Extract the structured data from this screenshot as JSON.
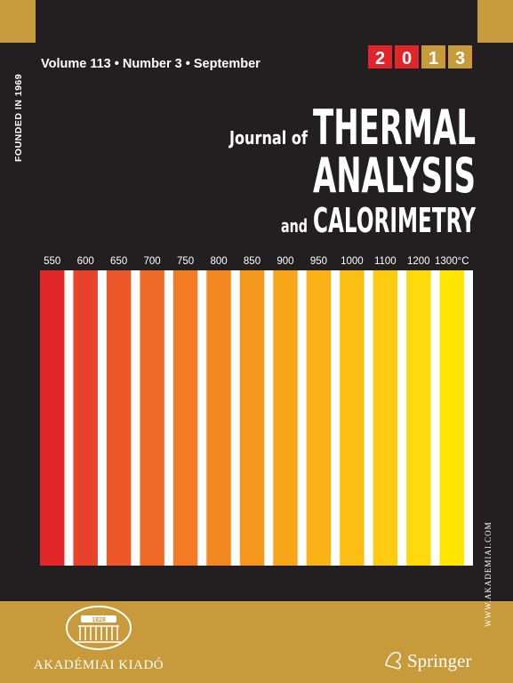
{
  "cover": {
    "founded": "FOUNDED IN 1969",
    "issue": "Volume 113 • Number 3 • September",
    "year_digits": [
      {
        "text": "2",
        "color": "#e0262b"
      },
      {
        "text": "0",
        "color": "#e0262b"
      },
      {
        "text": "1",
        "color": "#c79a3c"
      },
      {
        "text": "3",
        "color": "#c79a3c"
      }
    ],
    "title_prefix": "Journal of",
    "title_line1": "THERMAL",
    "title_line2": "ANALYSIS",
    "title_and": "and",
    "title_line3": "CALORIMETRY",
    "stripes": [
      {
        "label": "550",
        "color": "#e3262a"
      },
      {
        "label": "600",
        "color": "#e8422b"
      },
      {
        "label": "650",
        "color": "#ec5829"
      },
      {
        "label": "700",
        "color": "#ef6a27"
      },
      {
        "label": "750",
        "color": "#f27b24"
      },
      {
        "label": "800",
        "color": "#f48820"
      },
      {
        "label": "850",
        "color": "#f6971d"
      },
      {
        "label": "900",
        "color": "#f8a51a"
      },
      {
        "label": "950",
        "color": "#fab217"
      },
      {
        "label": "1000",
        "color": "#fbbf13"
      },
      {
        "label": "1100",
        "color": "#fdcc10"
      },
      {
        "label": "1200",
        "color": "#fed90c"
      },
      {
        "label": "1300°C",
        "color": "#ffe500"
      }
    ],
    "website": "WWW.AKADEMIAI.COM",
    "logo_year": "1828",
    "publisher": "AKADÉMIAI KIADÓ",
    "copublisher": "Springer"
  }
}
